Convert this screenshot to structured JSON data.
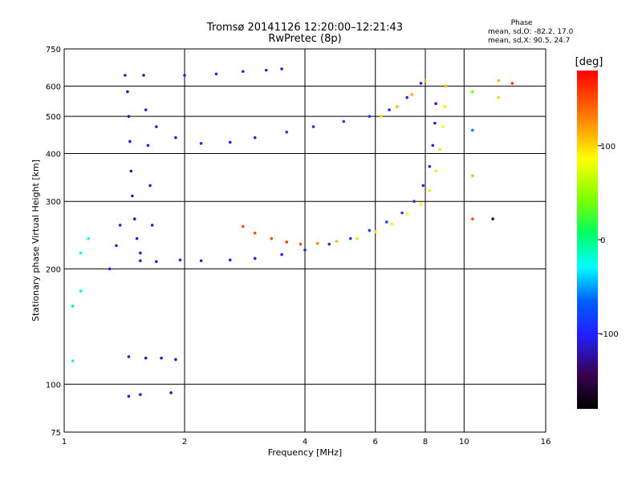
{
  "chart_data": {
    "type": "scatter",
    "title": "Tromsø 20141126 12:20:00–12:21:43",
    "subtitle": "RwPretec (8p)",
    "xlabel": "Frequency [MHz]",
    "ylabel": "Stationary phase Virtual Height [km]",
    "x_scale": "log",
    "y_scale": "log",
    "xlim": [
      1,
      16
    ],
    "ylim": [
      75,
      750
    ],
    "x_ticks": [
      1,
      2,
      4,
      6,
      8,
      10,
      16
    ],
    "y_ticks": [
      75,
      100,
      200,
      300,
      400,
      500,
      600,
      750
    ],
    "grid": true,
    "phase_info": {
      "title": "Phase",
      "line_o": "mean, sd,O: -82.2, 17.0",
      "line_x": "mean, sd,X: 90.5, 24.7"
    },
    "colorbar": {
      "label": "[deg]",
      "ticks": [
        100,
        0,
        -100
      ],
      "range": [
        -180,
        180
      ],
      "colormap": "rainbow"
    },
    "series": [
      {
        "points": [
          [
            1.55,
            210,
            -110
          ],
          [
            1.7,
            209,
            -105
          ],
          [
            1.95,
            211,
            -100
          ],
          [
            2.2,
            210,
            -105
          ],
          [
            2.6,
            211,
            -100
          ],
          [
            3.0,
            213,
            -105
          ],
          [
            3.5,
            218,
            -100
          ],
          [
            4.0,
            224,
            -95
          ],
          [
            4.6,
            232,
            -90
          ],
          [
            5.2,
            240,
            -85
          ],
          [
            5.8,
            252,
            -80
          ],
          [
            6.4,
            265,
            -80
          ],
          [
            7.0,
            280,
            -85
          ],
          [
            7.5,
            300,
            -90
          ],
          [
            7.9,
            330,
            -95
          ],
          [
            8.2,
            370,
            -100
          ],
          [
            8.35,
            420,
            -105
          ],
          [
            8.45,
            480,
            -110
          ],
          [
            8.5,
            540,
            -110
          ],
          [
            1.42,
            640,
            -110
          ],
          [
            1.44,
            580,
            -110
          ],
          [
            1.45,
            500,
            -115
          ],
          [
            1.46,
            430,
            -110
          ],
          [
            1.47,
            360,
            -115
          ],
          [
            1.48,
            310,
            -110
          ],
          [
            1.5,
            270,
            -110
          ],
          [
            1.52,
            240,
            -105
          ],
          [
            1.55,
            220,
            -105
          ],
          [
            1.58,
            640,
            -115
          ],
          [
            1.6,
            520,
            -110
          ],
          [
            1.62,
            420,
            -105
          ],
          [
            1.64,
            330,
            -110
          ],
          [
            1.66,
            260,
            -110
          ],
          [
            1.3,
            200,
            -100
          ],
          [
            1.35,
            230,
            -105
          ],
          [
            1.38,
            260,
            -110
          ],
          [
            1.7,
            470,
            -105
          ],
          [
            1.9,
            440,
            -100
          ],
          [
            2.2,
            425,
            -100
          ],
          [
            2.6,
            428,
            -100
          ],
          [
            3.0,
            440,
            -95
          ],
          [
            3.6,
            455,
            -90
          ],
          [
            4.2,
            470,
            -90
          ],
          [
            5.0,
            485,
            -85
          ],
          [
            5.8,
            500,
            -85
          ],
          [
            6.5,
            520,
            -95
          ],
          [
            7.2,
            560,
            -100
          ],
          [
            7.8,
            610,
            -105
          ],
          [
            2.0,
            640,
            -100
          ],
          [
            2.4,
            645,
            -100
          ],
          [
            2.8,
            655,
            -100
          ],
          [
            3.2,
            660,
            -105
          ],
          [
            3.5,
            665,
            -100
          ],
          [
            1.45,
            118,
            -110
          ],
          [
            1.6,
            117,
            -120
          ],
          [
            1.75,
            117,
            -115
          ],
          [
            1.9,
            116,
            -120
          ],
          [
            1.45,
            93,
            -110
          ],
          [
            1.55,
            94,
            -115
          ],
          [
            1.85,
            95,
            -120
          ]
        ]
      },
      {
        "points": [
          [
            2.8,
            258,
            150
          ],
          [
            3.0,
            248,
            150
          ],
          [
            3.3,
            240,
            155
          ],
          [
            3.6,
            235,
            160
          ],
          [
            3.9,
            232,
            150
          ],
          [
            4.3,
            233,
            130
          ],
          [
            4.8,
            236,
            110
          ],
          [
            5.4,
            240,
            100
          ],
          [
            6.0,
            250,
            95
          ],
          [
            6.6,
            262,
            90
          ],
          [
            7.2,
            278,
            85
          ],
          [
            7.8,
            295,
            80
          ],
          [
            8.2,
            320,
            75
          ],
          [
            8.5,
            360,
            70
          ],
          [
            8.7,
            410,
            65
          ],
          [
            8.85,
            470,
            80
          ],
          [
            8.95,
            530,
            95
          ],
          [
            9.0,
            600,
            110
          ],
          [
            6.2,
            500,
            100
          ],
          [
            6.8,
            530,
            110
          ],
          [
            7.4,
            570,
            115
          ],
          [
            8.0,
            620,
            110
          ],
          [
            1.1,
            220,
            -30
          ],
          [
            1.15,
            240,
            -20
          ],
          [
            1.05,
            160,
            -10
          ],
          [
            1.1,
            175,
            -20
          ],
          [
            1.05,
            115,
            -20
          ],
          [
            10.5,
            580,
            40
          ],
          [
            10.5,
            460,
            -60
          ],
          [
            10.5,
            350,
            110
          ],
          [
            10.5,
            270,
            150
          ],
          [
            12.2,
            620,
            110
          ],
          [
            12.2,
            560,
            100
          ],
          [
            13.2,
            610,
            160
          ],
          [
            11.8,
            270,
            -140
          ]
        ]
      }
    ]
  }
}
